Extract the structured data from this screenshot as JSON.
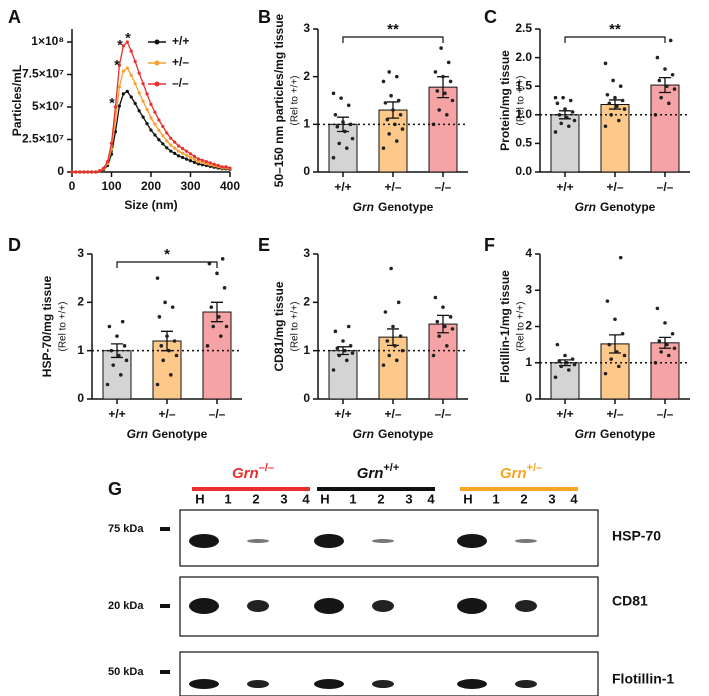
{
  "chart_data": [
    {
      "type": "line",
      "panel": "A",
      "xlabel": "Size (nm)",
      "ylabel": "Particles/mL",
      "x": [
        0,
        10,
        20,
        30,
        40,
        50,
        60,
        70,
        80,
        90,
        100,
        110,
        120,
        130,
        140,
        150,
        160,
        170,
        180,
        190,
        200,
        210,
        220,
        230,
        240,
        250,
        260,
        270,
        280,
        290,
        300,
        310,
        320,
        330,
        340,
        350,
        360,
        370,
        380,
        390,
        400
      ],
      "xlim": [
        0,
        400
      ],
      "xticks": [
        0,
        100,
        200,
        300,
        400
      ],
      "ylim": [
        0,
        110000000
      ],
      "yticks": [
        0,
        {
          "value": 25000000,
          "label": "2.5×10⁷"
        },
        {
          "value": 50000000,
          "label": "5×10⁷"
        },
        {
          "value": 75000000,
          "label": "7.5×10⁷"
        },
        {
          "value": 100000000,
          "label": "1×10⁸"
        }
      ],
      "annotations": [
        "*",
        "*",
        "*",
        "*"
      ],
      "series": [
        {
          "name": "+/+",
          "color": "#111111",
          "values": [
            0,
            0,
            0,
            0,
            0,
            0,
            0,
            620000,
            1860000,
            4960000,
            13640000,
            31000000,
            50800000,
            60100000,
            62000000,
            57700000,
            52700000,
            47100000,
            42200000,
            37200000,
            32200000,
            28500000,
            24800000,
            21700000,
            18600000,
            16100000,
            14300000,
            12400000,
            11200000,
            9900000,
            8700000,
            7400000,
            6200000,
            5600000,
            5000000,
            4300000,
            3700000,
            3100000,
            2500000,
            2500000,
            1900000
          ]
        },
        {
          "name": "+/–",
          "color": "#f5a030",
          "values": [
            0,
            0,
            0,
            0,
            0,
            0,
            0,
            800000,
            2400000,
            6400000,
            17600000,
            40000000,
            65600000,
            77600000,
            80000000,
            74400000,
            68000000,
            60800000,
            54400000,
            48000000,
            41600000,
            36800000,
            32000000,
            28000000,
            24000000,
            20800000,
            18400000,
            16000000,
            14400000,
            12800000,
            11200000,
            9600000,
            8000000,
            7200000,
            6400000,
            5600000,
            4800000,
            4000000,
            3200000,
            3200000,
            2400000
          ]
        },
        {
          "name": "–/–",
          "color": "#e8302e",
          "values": [
            0,
            0,
            0,
            0,
            0,
            0,
            0,
            1000000,
            3000000,
            8000000,
            22000000,
            50000000,
            82000000,
            97000000,
            100000000,
            93000000,
            85000000,
            76000000,
            68000000,
            60000000,
            52000000,
            46000000,
            40000000,
            35000000,
            30000000,
            26000000,
            23000000,
            20000000,
            18000000,
            16000000,
            14000000,
            12000000,
            10000000,
            9000000,
            8000000,
            7000000,
            6000000,
            5000000,
            4000000,
            4000000,
            3000000
          ]
        }
      ]
    },
    {
      "type": "bar",
      "panel": "B",
      "ylabel": "50–150 nm particles/mg tissue",
      "ylabel_note": "(Rel to +/+)",
      "xlabel": {
        "gene": "Grn",
        "text": "Genotype"
      },
      "categories": [
        "+/+",
        "+/–",
        "–/–"
      ],
      "colors": [
        "#d4d4d4",
        "#fdc98a",
        "#f6a3a5"
      ],
      "values": [
        1.0,
        1.3,
        1.78
      ],
      "errors": [
        0.15,
        0.17,
        0.22
      ],
      "points": [
        [
          0.3,
          0.5,
          0.6,
          0.7,
          0.85,
          0.95,
          1.0,
          1.05,
          1.2,
          1.4,
          1.55,
          1.65
        ],
        [
          0.5,
          0.65,
          0.8,
          0.9,
          1.0,
          1.1,
          1.2,
          1.3,
          1.45,
          1.5,
          1.6,
          1.9,
          2.0,
          2.1
        ],
        [
          1.0,
          1.2,
          1.3,
          1.5,
          1.65,
          1.7,
          1.9,
          2.0,
          2.1,
          2.3,
          2.6
        ]
      ],
      "refline": 1,
      "significance": "**",
      "ylim": [
        0,
        3
      ],
      "yticks": [
        0,
        1,
        2,
        3
      ]
    },
    {
      "type": "bar",
      "panel": "C",
      "ylabel": "Protein/mg tissue",
      "ylabel_note": "(Rel to +/+)",
      "xlabel": {
        "gene": "Grn",
        "text": "Genotype"
      },
      "categories": [
        "+/+",
        "+/–",
        "–/–"
      ],
      "colors": [
        "#d4d4d4",
        "#fdc98a",
        "#f6a3a5"
      ],
      "values": [
        1.0,
        1.18,
        1.52
      ],
      "errors": [
        0.07,
        0.08,
        0.13
      ],
      "points": [
        [
          0.7,
          0.8,
          0.85,
          0.9,
          0.95,
          1.0,
          1.05,
          1.1,
          1.2,
          1.25,
          1.3,
          1.3
        ],
        [
          0.8,
          0.9,
          1.0,
          1.1,
          1.15,
          1.2,
          1.25,
          1.3,
          1.35,
          1.5,
          1.6,
          1.9
        ],
        [
          1.0,
          1.2,
          1.3,
          1.45,
          1.5,
          1.6,
          1.7,
          1.8,
          2.0,
          2.3
        ]
      ],
      "refline": 1,
      "significance": "**",
      "ylim": [
        0,
        2.5
      ],
      "yticks": [
        {
          "value": 0,
          "label": "0.0"
        },
        0.5,
        {
          "value": 1,
          "label": "1.0"
        },
        1.5,
        {
          "value": 2,
          "label": "2.0"
        },
        2.5
      ]
    },
    {
      "type": "bar",
      "panel": "D",
      "ylabel": "HSP-70/mg tissue",
      "ylabel_note": "(Rel to +/+)",
      "xlabel": {
        "gene": "Grn",
        "text": "Genotype"
      },
      "categories": [
        "+/+",
        "+/–",
        "–/–"
      ],
      "colors": [
        "#d4d4d4",
        "#fdc98a",
        "#f6a3a5"
      ],
      "values": [
        1.0,
        1.2,
        1.8
      ],
      "errors": [
        0.14,
        0.2,
        0.2
      ],
      "points": [
        [
          0.3,
          0.5,
          0.7,
          0.8,
          0.9,
          1.0,
          1.1,
          1.3,
          1.5,
          1.6
        ],
        [
          0.3,
          0.5,
          0.8,
          0.9,
          1.0,
          1.1,
          1.2,
          1.3,
          1.7,
          1.9,
          2.0,
          2.5
        ],
        [
          1.1,
          1.3,
          1.5,
          1.5,
          1.7,
          1.9,
          2.3,
          2.6,
          2.8,
          2.9
        ]
      ],
      "refline": 1,
      "significance": "*",
      "ylim": [
        0,
        3
      ],
      "yticks": [
        0,
        1,
        2,
        3
      ]
    },
    {
      "type": "bar",
      "panel": "E",
      "ylabel": "CD81/mg tissue",
      "ylabel_note": "(Rel to +/+)",
      "xlabel": {
        "gene": "Grn",
        "text": "Genotype"
      },
      "categories": [
        "+/+",
        "+/–",
        "–/–"
      ],
      "colors": [
        "#d4d4d4",
        "#fdc98a",
        "#f6a3a5"
      ],
      "values": [
        1.0,
        1.28,
        1.55
      ],
      "errors": [
        0.08,
        0.17,
        0.18
      ],
      "points": [
        [
          0.6,
          0.8,
          0.9,
          0.95,
          1.0,
          1.05,
          1.1,
          1.2,
          1.4,
          1.5
        ],
        [
          0.7,
          0.8,
          0.9,
          1.0,
          1.1,
          1.2,
          1.3,
          1.5,
          1.8,
          2.0,
          2.7
        ],
        [
          0.9,
          1.1,
          1.3,
          1.45,
          1.5,
          1.6,
          1.7,
          1.9,
          2.1
        ]
      ],
      "refline": 1,
      "ylim": [
        0,
        3
      ],
      "yticks": [
        0,
        1,
        2,
        3
      ]
    },
    {
      "type": "bar",
      "panel": "F",
      "ylabel": "Flotillin-1/mg tissue",
      "ylabel_note": "(Rel to +/+)",
      "xlabel": {
        "gene": "Grn",
        "text": "Genotype"
      },
      "categories": [
        "+/+",
        "+/–",
        "–/–"
      ],
      "colors": [
        "#d4d4d4",
        "#fdc98a",
        "#f6a3a5"
      ],
      "values": [
        1.0,
        1.52,
        1.55
      ],
      "errors": [
        0.08,
        0.25,
        0.15
      ],
      "points": [
        [
          0.6,
          0.8,
          0.9,
          0.95,
          1.0,
          1.05,
          1.1,
          1.2,
          1.5
        ],
        [
          0.7,
          0.9,
          1.1,
          1.2,
          1.3,
          1.5,
          1.8,
          2.2,
          2.7,
          3.9
        ],
        [
          1.0,
          1.2,
          1.3,
          1.4,
          1.5,
          1.6,
          1.8,
          2.1,
          2.5
        ]
      ],
      "refline": 1,
      "ylim": [
        0,
        4
      ],
      "yticks": [
        0,
        1,
        2,
        3,
        4
      ]
    }
  ],
  "blot": {
    "panel": "G",
    "groups": [
      {
        "gene": "Grn",
        "genotype": "–/–",
        "color": "#e8302e"
      },
      {
        "gene": "Grn",
        "genotype": "+/+",
        "color": "#111111"
      },
      {
        "gene": "Grn",
        "genotype": "+/–",
        "color": "#f5a623"
      }
    ],
    "lanes": [
      "H",
      "1",
      "2",
      "3",
      "4"
    ],
    "markers": [
      "75 kDa",
      "20 kDa",
      "50 kDa"
    ],
    "bands": [
      "HSP-70",
      "CD81",
      "Flotillin-1"
    ]
  }
}
